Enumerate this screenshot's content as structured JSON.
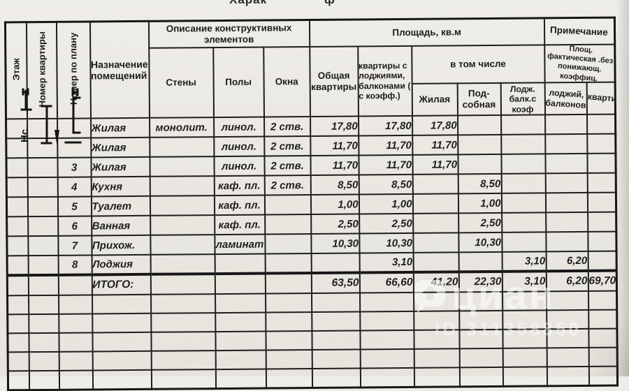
{
  "page": {
    "title_fragment_left": "Харак",
    "title_fragment_right": "ф"
  },
  "table": {
    "header": {
      "floor": "Этаж",
      "apt_number": "Номер квартиры",
      "plan_number": "Номер по плану",
      "purpose": "Назначение помещений",
      "construction_group": "Описание конструктивных элементов",
      "walls": "Стены",
      "floors": "Полы",
      "windows": "Окна",
      "area_group": "Площадь, кв.м",
      "total_area": "Общая квартиры",
      "area_with_balcony": "квартиры с лоджиями, балконами ( с коэфф.)",
      "including": "в том числе",
      "living": "Жилая",
      "auxiliary": "Под-собная",
      "loggia_coef": "Лодж. балк.с коэф",
      "note_group": "Примечание",
      "note_sub": "Площ. фактическая .без понижающ. коэффиц.",
      "note_loggias": "лоджий, балконов",
      "note_apartment": "квартиры"
    },
    "rows": [
      [
        "",
        "",
        "",
        "Жилая",
        "монолит.",
        "линол.",
        "2 ств.",
        "17,80",
        "17,80",
        "17,80",
        "",
        "",
        "",
        ""
      ],
      [
        "",
        "",
        "",
        "Жилая",
        "",
        "линол.",
        "2 ств.",
        "11,70",
        "11,70",
        "11,70",
        "",
        "",
        "",
        ""
      ],
      [
        "",
        "",
        "3",
        "Жилая",
        "",
        "линол.",
        "2 ств.",
        "11,70",
        "11,70",
        "11,70",
        "",
        "",
        "",
        ""
      ],
      [
        "",
        "",
        "4",
        "Кухня",
        "",
        "каф. пл.",
        "2 ств.",
        "8,50",
        "8,50",
        "",
        "8,50",
        "",
        "",
        ""
      ],
      [
        "",
        "",
        "5",
        "Туалет",
        "",
        "каф. пл.",
        "",
        "1,00",
        "1,00",
        "",
        "1,00",
        "",
        "",
        ""
      ],
      [
        "",
        "",
        "6",
        "Ванная",
        "",
        "каф. пл.",
        "",
        "2,50",
        "2,50",
        "",
        "2,50",
        "",
        "",
        ""
      ],
      [
        "",
        "",
        "7",
        "Прихож.",
        "",
        "ламинат",
        "",
        "10,30",
        "10,30",
        "",
        "10,30",
        "",
        "",
        ""
      ],
      [
        "",
        "",
        "8",
        "Лоджия",
        "",
        "",
        "",
        "",
        "3,10",
        "",
        "",
        "3,10",
        "6,20",
        ""
      ]
    ],
    "total_row": [
      "",
      "",
      "",
      "ИТОГО:",
      "",
      "",
      "",
      "63,50",
      "66,60",
      "41,20",
      "22,30",
      "3,10",
      "6,20",
      "69,70"
    ],
    "empty_row_count": 5
  },
  "watermark": {
    "brand": "циан",
    "listing_id": "ID 311358850"
  }
}
